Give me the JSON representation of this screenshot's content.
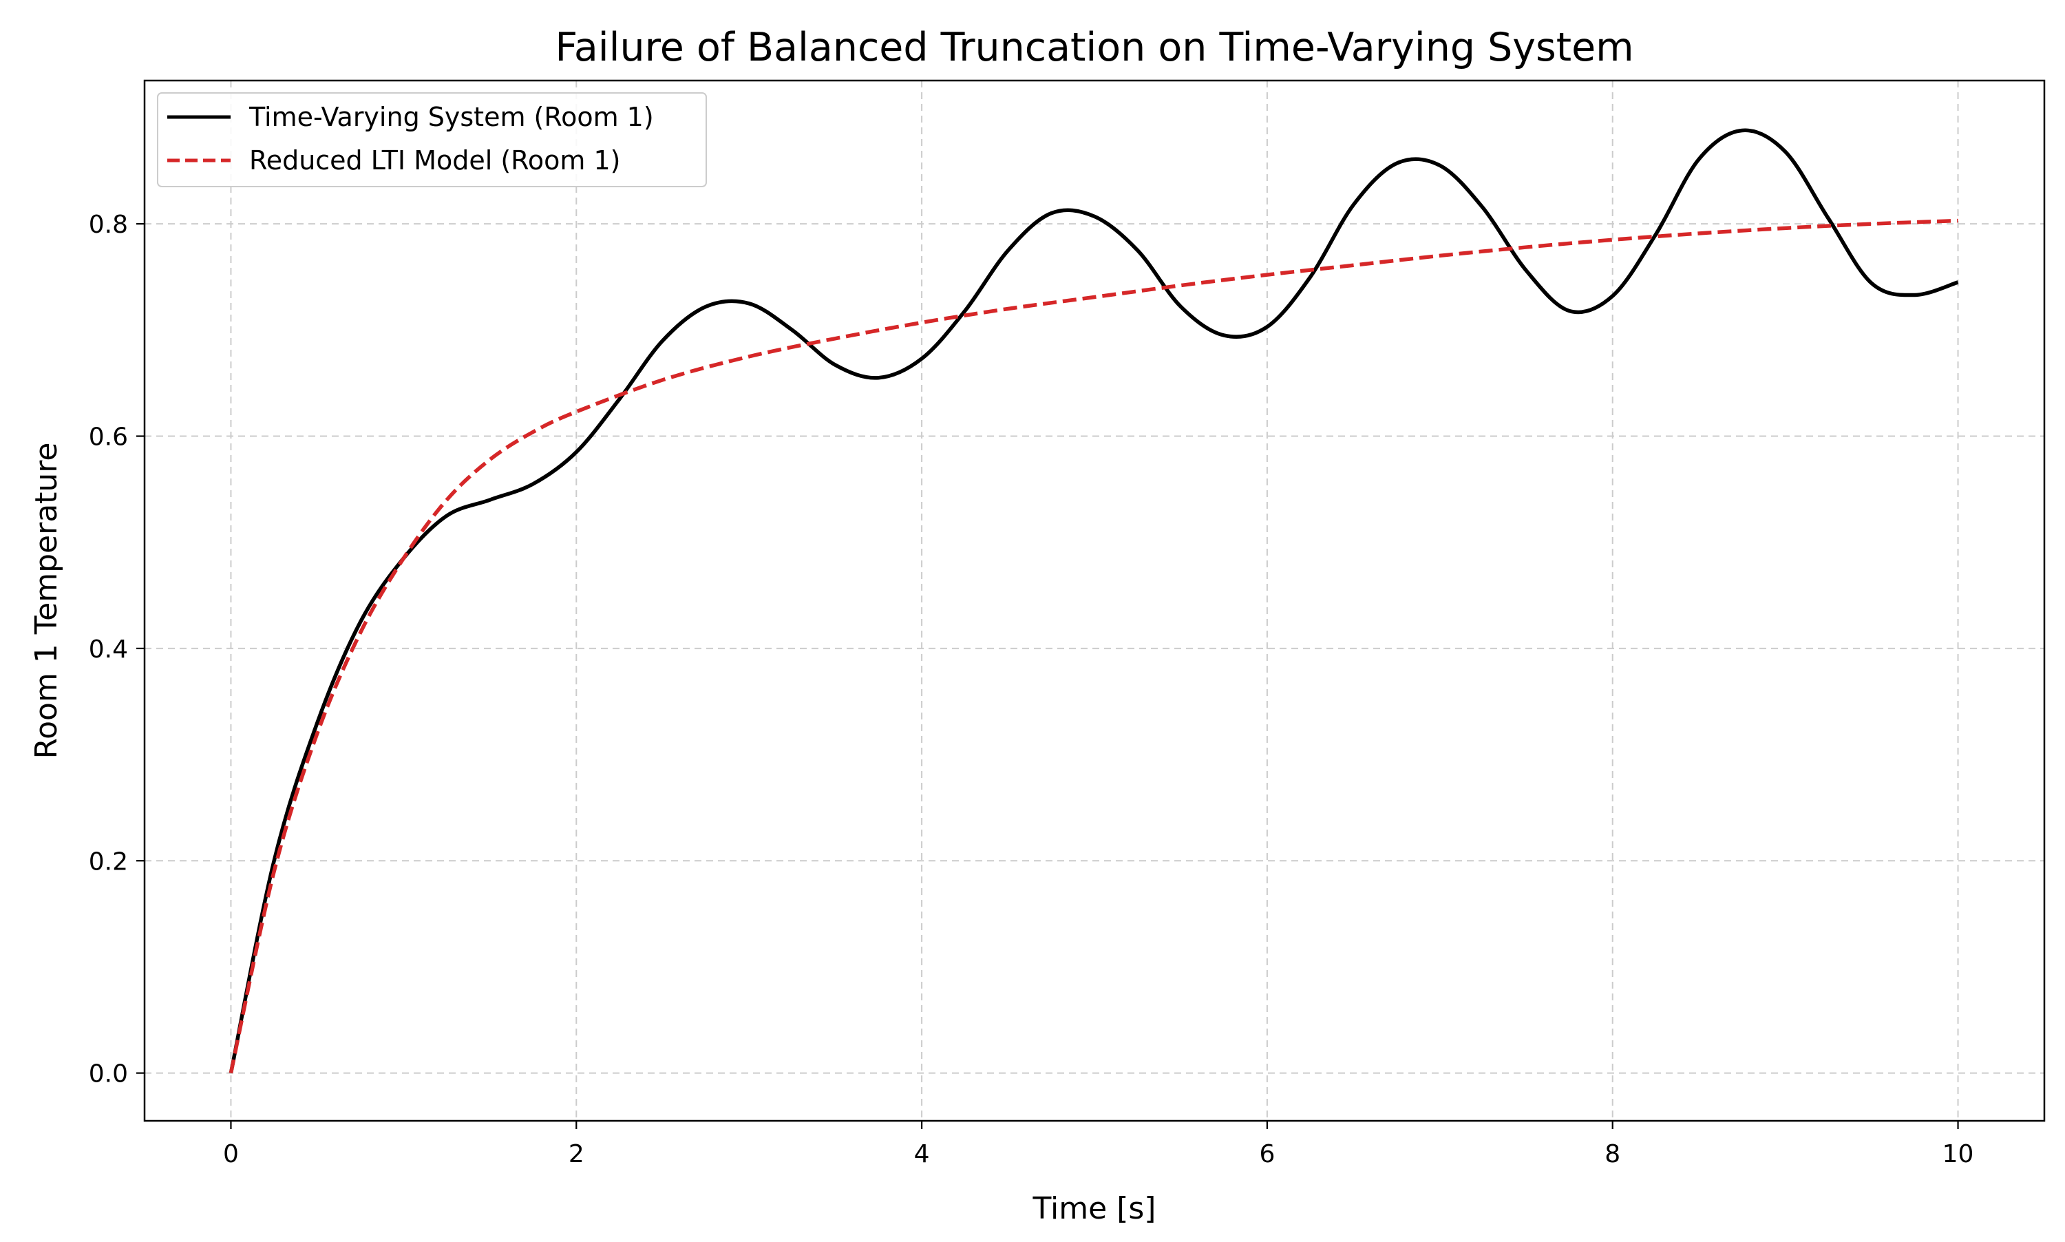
{
  "colors": {
    "series_1": "#000000",
    "series_2": "#d62728",
    "grid": "#cccccc",
    "background": "#ffffff"
  },
  "chart_data": {
    "type": "line",
    "title": "Failure of Balanced Truncation on Time-Varying System",
    "xlabel": "Time [s]",
    "ylabel": "Room 1 Temperature",
    "xlim": [
      -0.5,
      10.5
    ],
    "ylim": [
      -0.045,
      0.935
    ],
    "xticks": [
      0,
      2,
      4,
      6,
      8,
      10
    ],
    "xtick_labels": [
      "0",
      "2",
      "4",
      "6",
      "8",
      "10"
    ],
    "yticks": [
      0.0,
      0.2,
      0.4,
      0.6,
      0.8
    ],
    "ytick_labels": [
      "0.0",
      "0.2",
      "0.4",
      "0.6",
      "0.8"
    ],
    "grid": true,
    "grid_style": "dashed",
    "legend_position": "upper-left",
    "series": [
      {
        "name": "Time-Varying System (Room 1)",
        "style": "solid",
        "color": "#000000",
        "x": [
          0,
          0.25,
          0.5,
          0.75,
          1.0,
          1.25,
          1.5,
          1.75,
          2.0,
          2.25,
          2.5,
          2.75,
          3.0,
          3.25,
          3.5,
          3.75,
          4.0,
          4.25,
          4.5,
          4.75,
          5.0,
          5.25,
          5.5,
          5.75,
          6.0,
          6.25,
          6.5,
          6.75,
          7.0,
          7.25,
          7.5,
          7.75,
          8.0,
          8.25,
          8.5,
          8.75,
          9.0,
          9.25,
          9.5,
          9.75,
          10.0
        ],
        "y": [
          0.0,
          0.2,
          0.33,
          0.425,
          0.485,
          0.525,
          0.54,
          0.555,
          0.585,
          0.635,
          0.69,
          0.722,
          0.725,
          0.7,
          0.667,
          0.655,
          0.673,
          0.718,
          0.775,
          0.81,
          0.807,
          0.775,
          0.722,
          0.695,
          0.703,
          0.75,
          0.818,
          0.857,
          0.855,
          0.815,
          0.756,
          0.718,
          0.732,
          0.79,
          0.861,
          0.888,
          0.868,
          0.805,
          0.744,
          0.733,
          0.745
        ]
      },
      {
        "name": "Reduced LTI Model (Room 1)",
        "style": "dashed",
        "color": "#d62728",
        "x": [
          0,
          0.25,
          0.5,
          0.75,
          1.0,
          1.25,
          1.5,
          1.75,
          2.0,
          2.5,
          3.0,
          3.5,
          4.0,
          4.5,
          5.0,
          5.5,
          6.0,
          6.5,
          7.0,
          7.5,
          8.0,
          8.5,
          9.0,
          9.5,
          10.0
        ],
        "y": [
          0.0,
          0.19,
          0.32,
          0.415,
          0.485,
          0.54,
          0.578,
          0.604,
          0.623,
          0.653,
          0.675,
          0.692,
          0.707,
          0.72,
          0.731,
          0.742,
          0.752,
          0.761,
          0.77,
          0.778,
          0.785,
          0.791,
          0.796,
          0.8,
          0.803
        ]
      }
    ]
  }
}
